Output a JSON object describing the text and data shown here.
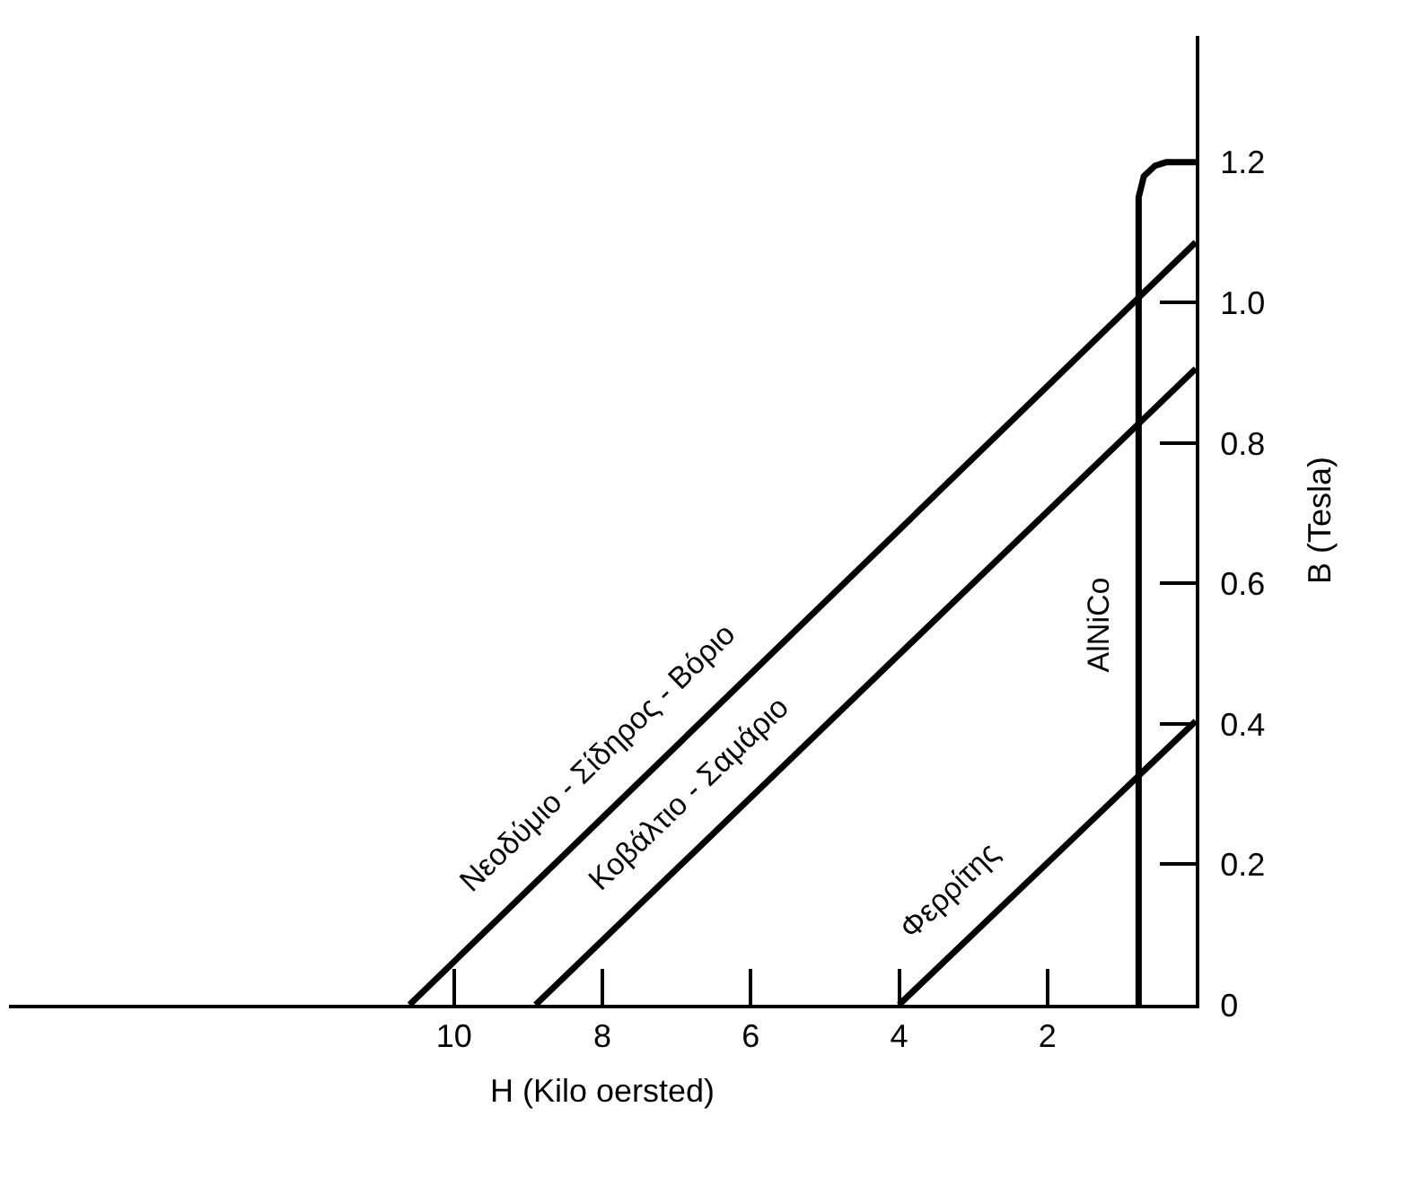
{
  "chart_data": {
    "type": "line",
    "xlabel": "H (Kilo oersted)",
    "ylabel": "B (Tesla)",
    "xlim": [
      16,
      0
    ],
    "xticks": [
      10,
      8,
      6,
      4,
      2
    ],
    "ylim": [
      0,
      1.38
    ],
    "yticks": [
      0,
      0.2,
      0.4,
      0.6,
      0.8,
      {
        "value": 1,
        "label": "1.0"
      },
      1.2
    ],
    "marker": "none",
    "line_style": "solid",
    "series": [
      {
        "color": "#000000",
        "x": [
          10.6,
          0
        ],
        "values": [
          0,
          1.086
        ]
      },
      {
        "color": "#000000",
        "x": [
          8.9,
          0
        ],
        "values": [
          0,
          0.906
        ]
      },
      {
        "color": "#000000",
        "x": [
          4.0,
          0
        ],
        "values": [
          0,
          0.404
        ]
      },
      {
        "color": "#000000",
        "x": [
          0.77,
          0.77,
          0.7,
          0.55,
          0.4,
          0
        ],
        "values": [
          0,
          1.15,
          1.18,
          1.195,
          1.2,
          1.2
        ]
      }
    ],
    "annotations": [
      "Νεοδύμιο - Σίδηρος - Βόριο",
      "Κοβάλτιο - Σαμάριο",
      "Φερρίτης",
      "AlNiCo"
    ]
  }
}
